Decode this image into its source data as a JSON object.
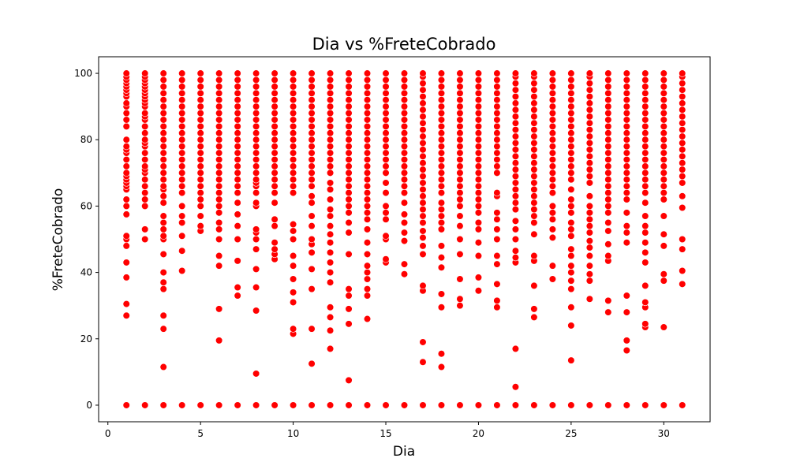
{
  "chart_data": {
    "type": "scatter",
    "title": "Dia vs %FreteCobrado",
    "xlabel": "Dia",
    "ylabel": "%FreteCobrado",
    "xlim": [
      -0.5,
      32.5
    ],
    "ylim": [
      -5,
      105
    ],
    "x_ticks": [
      0,
      5,
      10,
      15,
      20,
      25,
      30
    ],
    "y_ticks": [
      0,
      20,
      40,
      60,
      80,
      100
    ],
    "grid": false,
    "legend": "none",
    "marker_color": "#ff0000",
    "marker_edge_color": "#ffffff",
    "points": [
      {
        "x": 1,
        "y": [
          0,
          27,
          30.5,
          38.5,
          43,
          48,
          50,
          51,
          57.5,
          60,
          62,
          65,
          66,
          67,
          68,
          69,
          70,
          72,
          74,
          76,
          77,
          78,
          80,
          84,
          86,
          88,
          90,
          91,
          93,
          94,
          95,
          96,
          97,
          98,
          99,
          100
        ]
      },
      {
        "x": 2,
        "y": [
          0,
          50,
          53,
          60,
          62,
          64,
          66,
          68,
          70,
          71,
          72,
          74,
          76,
          78,
          79,
          80,
          82,
          84,
          86,
          87,
          88,
          90,
          91,
          92,
          93,
          94,
          95,
          96,
          97,
          98,
          99,
          100
        ]
      },
      {
        "x": 3,
        "y": [
          0,
          11.5,
          23,
          27,
          35,
          37,
          40,
          45.5,
          50,
          51,
          53,
          55,
          57,
          61,
          63,
          65,
          66,
          68,
          70,
          72,
          74,
          76,
          78,
          80,
          82,
          84,
          86,
          88,
          90,
          92,
          94,
          96,
          98,
          100
        ]
      },
      {
        "x": 4,
        "y": [
          0,
          40.5,
          46.5,
          51,
          55,
          57,
          60,
          64,
          66,
          68,
          70,
          72,
          74,
          76,
          78,
          80,
          82,
          84,
          86,
          88,
          90,
          92,
          94,
          96,
          98,
          100
        ]
      },
      {
        "x": 5,
        "y": [
          0,
          52.5,
          54,
          57,
          60,
          62,
          64,
          66,
          68,
          70,
          72,
          74,
          76,
          78,
          80,
          82,
          84,
          86,
          88,
          90,
          92,
          94,
          96,
          98,
          100
        ]
      },
      {
        "x": 6,
        "y": [
          0,
          19.5,
          29,
          42,
          45,
          50,
          53,
          55,
          58,
          60,
          62,
          64,
          66,
          68,
          70,
          72,
          74,
          76,
          78,
          80,
          82,
          84,
          86,
          88,
          90,
          92,
          94,
          96,
          98,
          100
        ]
      },
      {
        "x": 7,
        "y": [
          0,
          33,
          35.5,
          43.5,
          50,
          54,
          57.5,
          61,
          64,
          66,
          68,
          70,
          72,
          74,
          76,
          78,
          80,
          82,
          84,
          86,
          88,
          90,
          92,
          94,
          96,
          98,
          100
        ]
      },
      {
        "x": 8,
        "y": [
          0,
          9.5,
          28.5,
          35.5,
          41,
          47,
          50,
          52,
          53,
          60,
          61,
          64,
          66,
          67,
          68,
          70,
          72,
          74,
          76,
          78,
          80,
          82,
          84,
          86,
          88,
          90,
          92,
          94,
          96,
          98,
          100
        ]
      },
      {
        "x": 9,
        "y": [
          0,
          44,
          45.5,
          47,
          49,
          54,
          56,
          61,
          64,
          66,
          68,
          70,
          72,
          74,
          76,
          78,
          80,
          82,
          84,
          86,
          88,
          90,
          92,
          94,
          96,
          98,
          100
        ]
      },
      {
        "x": 10,
        "y": [
          0,
          21.5,
          23,
          31,
          34,
          38,
          42,
          45,
          50,
          52.5,
          54.5,
          64,
          66,
          68,
          70,
          72,
          74,
          76,
          78,
          80,
          82,
          84,
          86,
          88,
          90,
          92,
          94,
          96,
          98,
          100
        ]
      },
      {
        "x": 11,
        "y": [
          0,
          12.5,
          23,
          35,
          41,
          46,
          48.5,
          50,
          54,
          57,
          61,
          63,
          66,
          68,
          70,
          72,
          74,
          76,
          78,
          80,
          82,
          84,
          86,
          88,
          90,
          92,
          94,
          96,
          98,
          100
        ]
      },
      {
        "x": 12,
        "y": [
          0,
          17,
          22.5,
          26.5,
          29.5,
          37,
          40,
          43,
          46,
          49,
          51.5,
          54,
          57,
          59,
          62,
          65,
          67,
          70,
          72,
          74,
          76,
          78,
          80,
          82,
          84,
          86,
          88,
          90,
          92,
          94,
          96,
          98,
          100
        ]
      },
      {
        "x": 13,
        "y": [
          0,
          7.5,
          24.5,
          29,
          33,
          35,
          45.5,
          52,
          55,
          58,
          60,
          62,
          64,
          66,
          68,
          70,
          72,
          74,
          76,
          78,
          80,
          82,
          84,
          86,
          88,
          90,
          92,
          94,
          96,
          98,
          100
        ]
      },
      {
        "x": 14,
        "y": [
          0,
          26,
          33,
          35,
          38,
          40,
          42,
          45.5,
          49,
          53,
          56,
          58,
          60,
          62,
          64,
          66,
          68,
          70,
          72,
          74,
          76,
          78,
          80,
          82,
          84,
          86,
          88,
          90,
          92,
          94,
          96,
          98,
          100
        ]
      },
      {
        "x": 15,
        "y": [
          0,
          43,
          44,
          50,
          51,
          56,
          58,
          60,
          64,
          67,
          70,
          72,
          74,
          76,
          78,
          80,
          82,
          84,
          86,
          88,
          90,
          92,
          94,
          96,
          98,
          100
        ]
      },
      {
        "x": 16,
        "y": [
          0,
          39.5,
          42.5,
          49.5,
          52,
          55,
          57.5,
          61,
          64,
          66,
          68,
          70,
          72,
          74,
          76,
          78,
          80,
          82,
          84,
          86,
          88,
          90,
          92,
          94,
          96,
          98,
          100
        ]
      },
      {
        "x": 17,
        "y": [
          0,
          13,
          19,
          34.5,
          36,
          45.5,
          48,
          50.5,
          52.5,
          55,
          57,
          59,
          61,
          63,
          65,
          67,
          69,
          71,
          73,
          75,
          77,
          79,
          81,
          83,
          85,
          87,
          89,
          91,
          93,
          95,
          97,
          99,
          100
        ]
      },
      {
        "x": 18,
        "y": [
          0,
          11.5,
          15.5,
          29.5,
          33.5,
          41.5,
          44.5,
          48,
          53,
          55,
          57,
          59,
          61,
          64,
          66,
          68,
          70,
          72,
          74,
          76,
          78,
          80,
          82,
          84,
          86,
          88,
          90,
          92,
          94,
          96,
          98,
          100
        ]
      },
      {
        "x": 19,
        "y": [
          0,
          30,
          32,
          38,
          45.5,
          50,
          54,
          57,
          60,
          62,
          64,
          66,
          68,
          70,
          72,
          74,
          76,
          78,
          80,
          82,
          84,
          86,
          88,
          90,
          92,
          94,
          96,
          98,
          100
        ]
      },
      {
        "x": 20,
        "y": [
          0,
          34.5,
          38.5,
          45,
          49,
          53,
          55,
          58,
          60,
          62,
          64,
          66,
          68,
          70,
          72,
          74,
          76,
          78,
          80,
          82,
          84,
          86,
          88,
          90,
          92,
          94,
          96,
          98,
          100
        ]
      },
      {
        "x": 21,
        "y": [
          0,
          29.5,
          31.5,
          36.5,
          42.5,
          45,
          50,
          53,
          56,
          58,
          63,
          64,
          70,
          72,
          74,
          76,
          78,
          80,
          82,
          84,
          86,
          88,
          90,
          92,
          94,
          96,
          98,
          100
        ]
      },
      {
        "x": 22,
        "y": [
          0,
          5.5,
          17,
          43,
          44.5,
          46.5,
          50,
          53,
          55.5,
          59,
          61,
          63,
          65,
          67,
          69,
          71,
          73,
          75,
          77,
          79,
          81,
          83,
          85,
          87,
          89,
          91,
          93,
          95,
          97,
          99,
          100
        ]
      },
      {
        "x": 23,
        "y": [
          0,
          26.5,
          29,
          36,
          43.5,
          45,
          51.5,
          55,
          57,
          59,
          61,
          63,
          65,
          67,
          69,
          71,
          73,
          75,
          77,
          79,
          81,
          83,
          85,
          87,
          89,
          91,
          93,
          95,
          97,
          99,
          100
        ]
      },
      {
        "x": 24,
        "y": [
          0,
          38,
          42,
          50.5,
          53,
          56,
          58,
          60,
          64,
          66,
          68,
          70,
          72,
          74,
          76,
          78,
          80,
          82,
          84,
          86,
          88,
          90,
          92,
          94,
          96,
          98,
          100
        ]
      },
      {
        "x": 25,
        "y": [
          0,
          13.5,
          24,
          29.5,
          35,
          37.5,
          40,
          42,
          45,
          47,
          51,
          53,
          55,
          58,
          60,
          62,
          65,
          68,
          70,
          72,
          74,
          76,
          78,
          80,
          82,
          84,
          86,
          88,
          90,
          92,
          94,
          96,
          98,
          100
        ]
      },
      {
        "x": 26,
        "y": [
          0,
          32,
          37.5,
          39.5,
          42,
          45,
          47.5,
          49.5,
          52,
          54,
          56,
          58,
          60,
          63,
          67,
          69,
          71,
          73,
          75,
          77,
          79,
          81,
          83,
          85,
          87,
          89,
          91,
          93,
          95,
          97,
          99,
          100
        ]
      },
      {
        "x": 27,
        "y": [
          0,
          28,
          31.5,
          43.5,
          45,
          48.5,
          52.5,
          55,
          58,
          60,
          62,
          64,
          66,
          68,
          70,
          72,
          74,
          76,
          78,
          80,
          82,
          84,
          86,
          88,
          90,
          92,
          94,
          96,
          98,
          100
        ]
      },
      {
        "x": 28,
        "y": [
          0,
          16.5,
          19.5,
          28,
          33,
          49,
          52,
          54,
          58,
          62,
          64,
          66,
          68,
          70,
          72,
          74,
          76,
          78,
          80,
          82,
          84,
          86,
          88,
          90,
          92,
          94,
          96,
          98,
          100
        ]
      },
      {
        "x": 29,
        "y": [
          0,
          23.5,
          24.5,
          29.5,
          31,
          36,
          43,
          46,
          49,
          52,
          54,
          57,
          61,
          64,
          66,
          68,
          70,
          72,
          74,
          76,
          78,
          80,
          82,
          84,
          86,
          88,
          90,
          92,
          94,
          96,
          98,
          100
        ]
      },
      {
        "x": 30,
        "y": [
          0,
          23.5,
          37.5,
          39.5,
          48,
          51.5,
          57,
          62,
          64,
          66,
          68,
          70,
          72,
          74,
          76,
          78,
          80,
          82,
          84,
          86,
          88,
          90,
          92,
          94,
          96,
          98,
          100
        ]
      },
      {
        "x": 31,
        "y": [
          0,
          36.5,
          40.5,
          47,
          50,
          59.5,
          63,
          67,
          69,
          71,
          73,
          75,
          77,
          79,
          81,
          83,
          85,
          87,
          89,
          91,
          93,
          95,
          97,
          99,
          100
        ]
      }
    ]
  }
}
